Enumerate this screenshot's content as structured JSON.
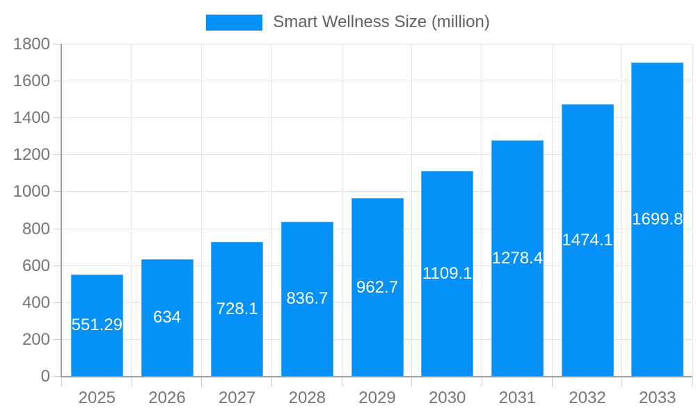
{
  "chart_data": {
    "type": "bar",
    "title": "",
    "legend_position": "top",
    "grid": true,
    "categories": [
      "2025",
      "2026",
      "2027",
      "2028",
      "2029",
      "2030",
      "2031",
      "2032",
      "2033"
    ],
    "series": [
      {
        "name": "Smart Wellness Size (million)",
        "values": [
          551.29,
          634,
          728.1,
          836.7,
          962.7,
          1109.1,
          1278.4,
          1474.1,
          1699.8
        ],
        "value_labels": [
          "551.29",
          "634",
          "728.1",
          "836.7",
          "962.7",
          "1109.1",
          "1278.4",
          "1474.1",
          "1699.8"
        ]
      }
    ],
    "xlabel": "",
    "ylabel": "",
    "ylim": [
      0,
      1800
    ],
    "ytick_step": 200,
    "ytick_labels": [
      "0",
      "200",
      "400",
      "600",
      "800",
      "1000",
      "1200",
      "1400",
      "1600",
      "1800"
    ],
    "colors": {
      "bar_fill": "#0591f8",
      "bar_border": "#4fadf9",
      "grid_line": "#e3e3e3",
      "axis_line": "#9e9e9e",
      "tick_line": "#cccccc",
      "axis_text": "#757575",
      "legend_text": "#616161",
      "value_text": "#ffffff"
    }
  }
}
